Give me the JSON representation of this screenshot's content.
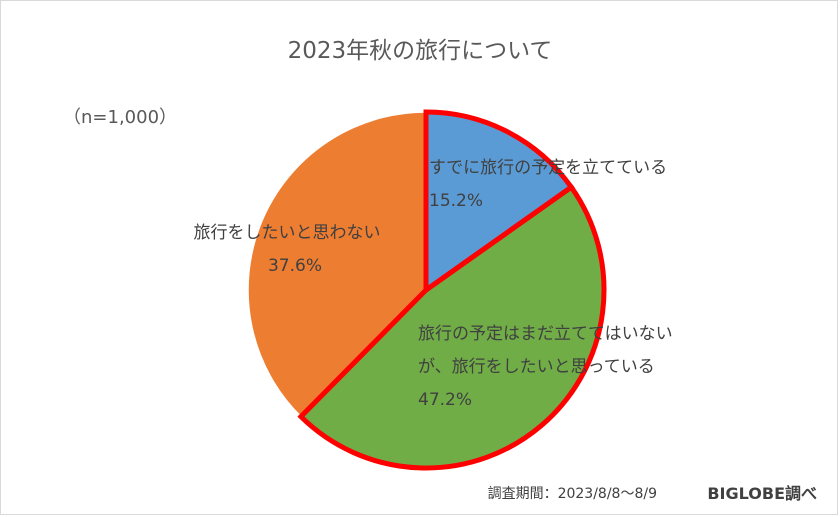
{
  "chart_data": {
    "type": "pie",
    "title": "2023年秋の旅行について",
    "sample_size": "（n=1,000）",
    "start_angle_deg": 0,
    "direction": "clockwise",
    "slices": [
      {
        "label_lines": [
          "すでに旅行の予定を立てている"
        ],
        "value": 15.2,
        "value_label": "15.2%",
        "color": "#5B9BD5",
        "highlighted": true
      },
      {
        "label_lines": [
          "旅行の予定はまだ立ててはいない",
          "が、旅行をしたいと思っている"
        ],
        "value": 47.2,
        "value_label": "47.2%",
        "color": "#70AD47",
        "highlighted": true
      },
      {
        "label_lines": [
          "旅行をしたいと思わない"
        ],
        "value": 37.6,
        "value_label": "37.6%",
        "color": "#ED7D31",
        "highlighted": false
      }
    ],
    "highlight_color": "#FF0000"
  },
  "footer": {
    "survey_period": "調査期間：2023/8/8～8/9",
    "source": "BIGLOBE調べ"
  }
}
